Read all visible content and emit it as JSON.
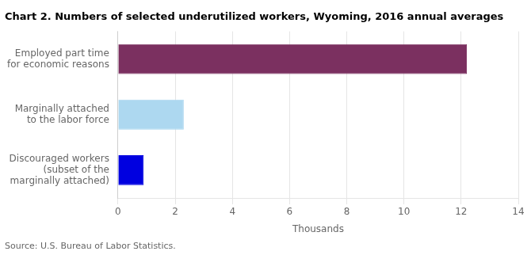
{
  "chart_data": {
    "type": "bar",
    "orientation": "horizontal",
    "title": "Chart 2. Numbers of selected underutilized workers, Wyoming, 2016 annual averages",
    "categories": [
      "Discouraged workers\n(subset of the\nmarginally attached)",
      "Marginally attached\nto the labor force",
      "Employed part time\nfor economic reasons"
    ],
    "values": [
      0.9,
      2.3,
      12.2
    ],
    "colors": [
      "#0000e0",
      "#add8f0",
      "#7b3060"
    ],
    "xlabel": "Thousands",
    "annotations": [
      "Source: U.S. Bureau of Labor Statistics."
    ],
    "xlim": [
      0,
      14
    ],
    "xticks": [
      0,
      2,
      4,
      6,
      8,
      10,
      12,
      14
    ],
    "grid": true
  }
}
